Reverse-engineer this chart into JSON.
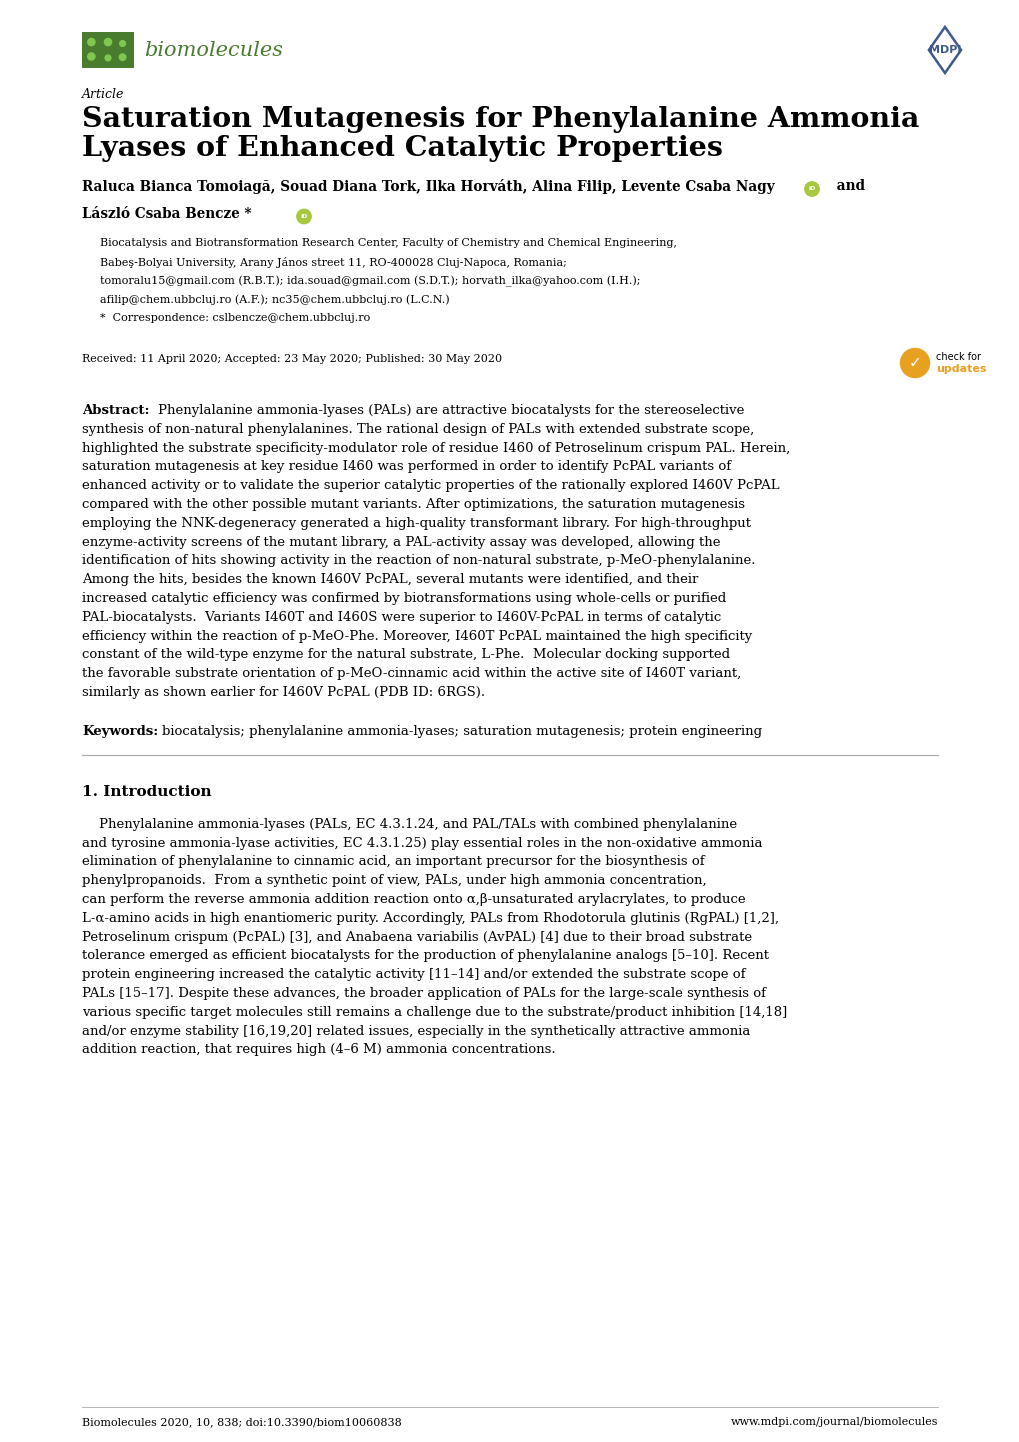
{
  "background_color": "#ffffff",
  "page_width": 10.2,
  "page_height": 14.42,
  "journal_name": "biomolecules",
  "article_label": "Article",
  "title_line1": "Saturation Mutagenesis for Phenylalanine Ammonia",
  "title_line2": "Lyases of Enhanced Catalytic Properties",
  "authors_line1": "Raluca Bianca Tomoiagă, Souad Diana Tork, Ilka Horváth, Alina Filip, Levente Csaba Nagy",
  "authors_line2": "László Csaba Bencze *",
  "aff1": "Biocatalysis and Biotransformation Research Center, Faculty of Chemistry and Chemical Engineering,",
  "aff2": "Babeş-Bolyai University, Arany János street 11, RO-400028 Cluj-Napoca, Romania;",
  "aff3": "tomoralu15@gmail.com (R.B.T.); ida.souad@gmail.com (S.D.T.); horvath_ilka@yahoo.com (I.H.);",
  "aff4": "afilip@chem.ubbcluj.ro (A.F.); nc35@chem.ubbcluj.ro (L.C.N.)",
  "correspondence": "*  Correspondence: cslbencze@chem.ubbcluj.ro",
  "dates": "Received: 11 April 2020; Accepted: 23 May 2020; Published: 30 May 2020",
  "abstract_text": "Phenylalanine ammonia-lyases (PALs) are attractive biocatalysts for the stereoselective synthesis of non-natural phenylalanines. The rational design of PALs with extended substrate scope, highlighted the substrate specificity-modulator role of residue I460 of Petroselinum crispum PAL. Herein, saturation mutagenesis at key residue I460 was performed in order to identify PcPAL variants of enhanced activity or to validate the superior catalytic properties of the rationally explored I460V PcPAL compared with the other possible mutant variants. After optimizations, the saturation mutagenesis employing the NNK-degeneracy generated a high-quality transformant library. For high-throughput enzyme-activity screens of the mutant library, a PAL-activity assay was developed, allowing the identification of hits showing activity in the reaction of non-natural substrate, p-MeO-phenylalanine. Among the hits, besides the known I460V PcPAL, several mutants were identified, and their increased catalytic efficiency was confirmed by biotransformations using whole-cells or purified PAL-biocatalysts.  Variants I460T and I460S were superior to I460V-PcPAL in terms of catalytic efficiency within the reaction of p-MeO-Phe. Moreover, I460T PcPAL maintained the high specificity constant of the wild-type enzyme for the natural substrate, L-Phe.  Molecular docking supported the favorable substrate orientation of p-MeO-cinnamic acid within the active site of I460T variant, similarly as shown earlier for I460V PcPAL (PDB ID: 6RGS).",
  "keywords_text": "biocatalysis; phenylalanine ammonia-lyases; saturation mutagenesis; protein engineering",
  "intro_text": "Phenylalanine ammonia-lyases (PALs, EC 4.3.1.24, and PAL/TALs with combined phenylalanine and tyrosine ammonia-lyase activities, EC 4.3.1.25) play essential roles in the non-oxidative ammonia elimination of phenylalanine to cinnamic acid, an important precursor for the biosynthesis of phenylpropanoids.  From a synthetic point of view, PALs, under high ammonia concentration, can perform the reverse ammonia addition reaction onto α,β-unsaturated arylacrylates, to produce L-α-amino acids in high enantiomeric purity. Accordingly, PALs from Rhodotorula glutinis (RgPAL) [1,2], Petroselinum crispum (PcPAL) [3], and Anabaena variabilis (AvPAL) [4] due to their broad substrate tolerance emerged as efficient biocatalysts for the production of phenylalanine analogs [5–10]. Recent protein engineering increased the catalytic activity [11–14] and/or extended the substrate scope of PALs [15–17]. Despite these advances, the broader application of PALs for the large-scale synthesis of various specific target molecules still remains a challenge due to the substrate/product inhibition [14,18] and/or enzyme stability [16,19,20] related issues, especially in the synthetically attractive ammonia addition reaction, that requires high (4–6 M) ammonia concentrations.",
  "footer_left": "Biomolecules 2020, 10, 838; doi:10.3390/biom10060838",
  "footer_right": "www.mdpi.com/journal/biomolecules",
  "logo_green": "#4a7c2f",
  "mdpi_blue": "#3d5a8a",
  "orcid_green": "#a8c840",
  "check_yellow": "#e8a020",
  "text_color": "#000000",
  "gray_color": "#888888",
  "abstract_lines": [
    "Phenylalanine ammonia-lyases (PALs) are attractive biocatalysts for the stereoselective",
    "synthesis of non-natural phenylalanines. The rational design of PALs with extended substrate scope,",
    "highlighted the substrate specificity-modulator role of residue I460 of Petroselinum crispum PAL. Herein,",
    "saturation mutagenesis at key residue I460 was performed in order to identify PcPAL variants of",
    "enhanced activity or to validate the superior catalytic properties of the rationally explored I460V PcPAL",
    "compared with the other possible mutant variants. After optimizations, the saturation mutagenesis",
    "employing the NNK-degeneracy generated a high-quality transformant library. For high-throughput",
    "enzyme-activity screens of the mutant library, a PAL-activity assay was developed, allowing the",
    "identification of hits showing activity in the reaction of non-natural substrate, p-MeO-phenylalanine.",
    "Among the hits, besides the known I460V PcPAL, several mutants were identified, and their",
    "increased catalytic efficiency was confirmed by biotransformations using whole-cells or purified",
    "PAL-biocatalysts.  Variants I460T and I460S were superior to I460V-PcPAL in terms of catalytic",
    "efficiency within the reaction of p-MeO-Phe. Moreover, I460T PcPAL maintained the high specificity",
    "constant of the wild-type enzyme for the natural substrate, L-Phe.  Molecular docking supported",
    "the favorable substrate orientation of p-MeO-cinnamic acid within the active site of I460T variant,",
    "similarly as shown earlier for I460V PcPAL (PDB ID: 6RGS)."
  ],
  "intro_lines": [
    "    Phenylalanine ammonia-lyases (PALs, EC 4.3.1.24, and PAL/TALs with combined phenylalanine",
    "and tyrosine ammonia-lyase activities, EC 4.3.1.25) play essential roles in the non-oxidative ammonia",
    "elimination of phenylalanine to cinnamic acid, an important precursor for the biosynthesis of",
    "phenylpropanoids.  From a synthetic point of view, PALs, under high ammonia concentration,",
    "can perform the reverse ammonia addition reaction onto α,β-unsaturated arylacrylates, to produce",
    "L-α-amino acids in high enantiomeric purity. Accordingly, PALs from Rhodotorula glutinis (RgPAL) [1,2],",
    "Petroselinum crispum (PcPAL) [3], and Anabaena variabilis (AvPAL) [4] due to their broad substrate",
    "tolerance emerged as efficient biocatalysts for the production of phenylalanine analogs [5–10]. Recent",
    "protein engineering increased the catalytic activity [11–14] and/or extended the substrate scope of",
    "PALs [15–17]. Despite these advances, the broader application of PALs for the large-scale synthesis of",
    "various specific target molecules still remains a challenge due to the substrate/product inhibition [14,18]",
    "and/or enzyme stability [16,19,20] related issues, especially in the synthetically attractive ammonia",
    "addition reaction, that requires high (4–6 M) ammonia concentrations."
  ]
}
